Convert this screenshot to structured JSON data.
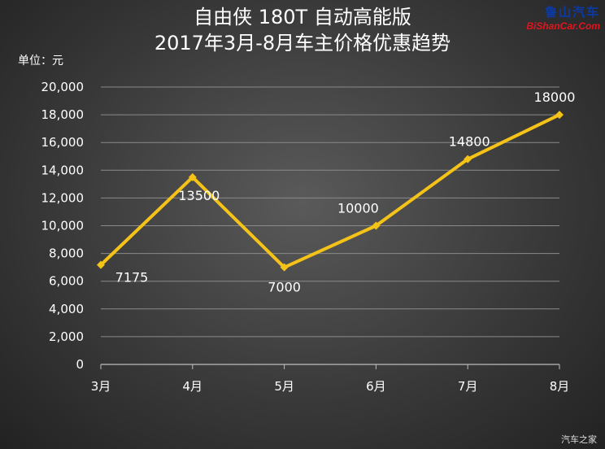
{
  "title_line1": "自由侠 180T 自动高能版",
  "title_line2": "2017年3月-8月车主价格优惠趋势",
  "unit_label": "单位：元",
  "watermark_cn": "鲁山汽车",
  "watermark_en": "BiShanCar.Com",
  "footer": "汽车之家",
  "chart_data": {
    "type": "line",
    "title": "自由侠 180T 自动高能版 2017年3月-8月车主价格优惠趋势",
    "categories": [
      "3月",
      "4月",
      "5月",
      "6月",
      "7月",
      "8月"
    ],
    "series": [
      {
        "values": [
          7175,
          13500,
          7000,
          10000,
          14800,
          18000
        ]
      }
    ],
    "data_labels": [
      "7175",
      "13500",
      "7000",
      "10000",
      "14800",
      "18000"
    ],
    "y_tick_labels": [
      "0",
      "2,000",
      "4,000",
      "6,000",
      "8,000",
      "10,000",
      "12,000",
      "14,000",
      "16,000",
      "18,000",
      "20,000"
    ],
    "ylim": [
      0,
      20000
    ],
    "ystep": 2000,
    "ylabel": "单位：元",
    "grid": true,
    "legend": "none",
    "line_color": "#f5c318",
    "grid_color": "#8a8a8a"
  }
}
